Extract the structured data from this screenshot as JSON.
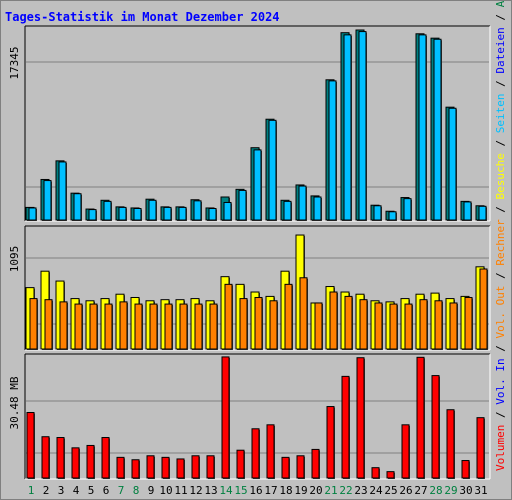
{
  "title": "Tages-Statistik im Monat Dezember 2024",
  "right_legend": [
    {
      "text": "Anfragen",
      "color": "#008040"
    },
    {
      "text": "Dateien",
      "color": "#0000ff"
    },
    {
      "text": "Seiten",
      "color": "#00c0ff"
    },
    {
      "text": "Besuche",
      "color": "#ffff00"
    },
    {
      "text": "Rechner",
      "color": "#ff8000"
    },
    {
      "text": "Vol. Out",
      "color": "#ff8000"
    },
    {
      "text": "Vol. In",
      "color": "#0000ff"
    },
    {
      "text": "Volumen",
      "color": "#ff0000"
    }
  ],
  "chart_data": [
    {
      "type": "bar",
      "panel": "top",
      "y_label": "17345",
      "categories": [
        "1",
        "2",
        "3",
        "4",
        "5",
        "6",
        "7",
        "8",
        "9",
        "10",
        "11",
        "12",
        "13",
        "14",
        "15",
        "16",
        "17",
        "18",
        "19",
        "20",
        "21",
        "22",
        "23",
        "24",
        "25",
        "26",
        "27",
        "28",
        "29",
        "30",
        "31"
      ],
      "weekend_days": [
        1,
        7,
        8,
        14,
        15,
        21,
        22,
        28,
        29
      ],
      "ylim": [
        0,
        17345
      ],
      "series": [
        {
          "name": "Anfragen",
          "color": "#008080",
          "values": [
            1150,
            3700,
            5400,
            2450,
            1000,
            1800,
            1200,
            1100,
            1900,
            1200,
            1200,
            1850,
            1100,
            2100,
            2800,
            6600,
            9200,
            1800,
            3200,
            2200,
            12800,
            17100,
            17345,
            1350,
            800,
            2050,
            17000,
            16600,
            10300,
            1700,
            1300
          ]
        },
        {
          "name": "Dateien",
          "color": "#00c0ff",
          "values": [
            1100,
            3600,
            5300,
            2400,
            950,
            1700,
            1150,
            1050,
            1800,
            1150,
            1150,
            1750,
            1050,
            1600,
            2700,
            6400,
            9100,
            1700,
            3100,
            2100,
            12700,
            16900,
            17200,
            1300,
            750,
            1950,
            16900,
            16500,
            10200,
            1650,
            1250
          ]
        }
      ]
    },
    {
      "type": "bar",
      "panel": "middle",
      "y_label": "1095",
      "categories": [
        "1",
        "2",
        "3",
        "4",
        "5",
        "6",
        "7",
        "8",
        "9",
        "10",
        "11",
        "12",
        "13",
        "14",
        "15",
        "16",
        "17",
        "18",
        "19",
        "20",
        "21",
        "22",
        "23",
        "24",
        "25",
        "26",
        "27",
        "28",
        "29",
        "30",
        "31"
      ],
      "ylim": [
        0,
        1095
      ],
      "series": [
        {
          "name": "Besuche",
          "color": "#ffff00",
          "values": [
            560,
            710,
            620,
            460,
            440,
            460,
            500,
            470,
            440,
            450,
            450,
            460,
            440,
            660,
            590,
            520,
            480,
            710,
            1040,
            420,
            570,
            520,
            500,
            440,
            430,
            460,
            500,
            510,
            460,
            480,
            750
          ]
        },
        {
          "name": "Rechner",
          "color": "#ff8000",
          "values": [
            460,
            450,
            430,
            410,
            410,
            410,
            430,
            410,
            410,
            410,
            410,
            410,
            410,
            590,
            460,
            470,
            440,
            590,
            650,
            420,
            520,
            480,
            450,
            420,
            410,
            410,
            450,
            440,
            420,
            470,
            730
          ]
        }
      ]
    },
    {
      "type": "bar",
      "panel": "bottom",
      "y_label": "30.48 MB",
      "categories": [
        "1",
        "2",
        "3",
        "4",
        "5",
        "6",
        "7",
        "8",
        "9",
        "10",
        "11",
        "12",
        "13",
        "14",
        "15",
        "16",
        "17",
        "18",
        "19",
        "20",
        "21",
        "22",
        "23",
        "24",
        "25",
        "26",
        "27",
        "28",
        "29",
        "30",
        "31"
      ],
      "ylim": [
        0,
        30.48
      ],
      "series": [
        {
          "name": "Volumen",
          "color": "#ff0000",
          "values": [
            16.5,
            10.4,
            10.2,
            7.6,
            8.2,
            10.2,
            5.2,
            4.6,
            5.6,
            5.2,
            4.8,
            5.6,
            5.6,
            30.5,
            7.0,
            12.4,
            13.4,
            5.2,
            5.6,
            7.2,
            18.0,
            25.6,
            30.3,
            2.6,
            1.6,
            13.4,
            30.4,
            25.8,
            17.2,
            4.4,
            15.2
          ]
        }
      ]
    }
  ]
}
